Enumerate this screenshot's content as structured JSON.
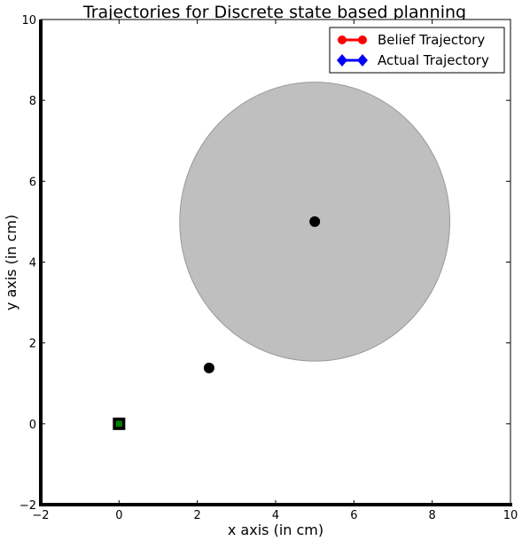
{
  "chart_data": {
    "type": "scatter",
    "title": "Trajectories for Discrete state based planning",
    "xlabel": "x axis (in cm)",
    "ylabel": "y axis (in cm)",
    "xlim": [
      -2,
      10
    ],
    "ylim": [
      -2,
      10
    ],
    "x_ticks": [
      -2,
      0,
      2,
      4,
      6,
      8,
      10
    ],
    "y_ticks": [
      -2,
      0,
      2,
      4,
      6,
      8,
      10
    ],
    "x_tick_labels": [
      "−2",
      "0",
      "2",
      "4",
      "6",
      "8",
      "10"
    ],
    "y_tick_labels": [
      "−2",
      "0",
      "2",
      "4",
      "6",
      "8",
      "10"
    ],
    "grid": false,
    "legend_position": "top-right",
    "legend": [
      {
        "label": "Belief Trajectory",
        "color": "#ff0000",
        "marker": "circle"
      },
      {
        "label": "Actual Trajectory",
        "color": "#0000ff",
        "marker": "diamond"
      }
    ],
    "region": {
      "shape": "circle",
      "center": [
        5,
        5
      ],
      "radius": 3.45,
      "fill": "#bfbfbf"
    },
    "points": [
      {
        "x": 0,
        "y": 0,
        "marker": "square",
        "color": "#000000",
        "inner_color": "#008000"
      },
      {
        "x": 2.3,
        "y": 1.38,
        "marker": "circle",
        "color": "#000000"
      },
      {
        "x": 5,
        "y": 5,
        "marker": "circle",
        "color": "#000000"
      }
    ]
  }
}
